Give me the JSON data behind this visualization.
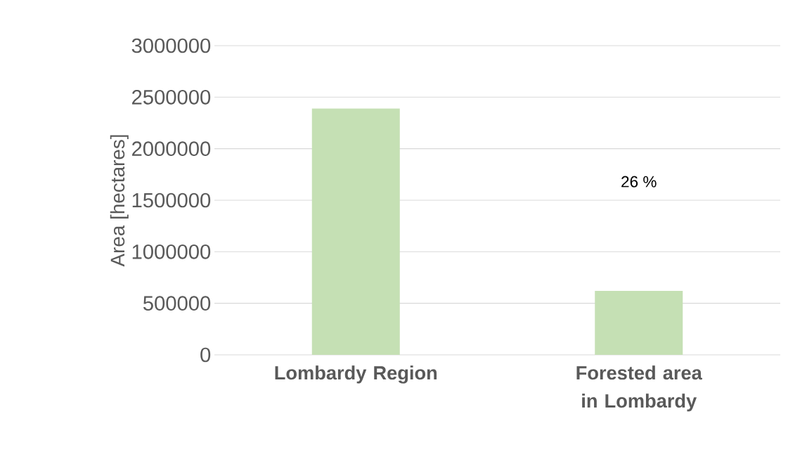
{
  "chart_data": {
    "type": "bar",
    "ylabel": "Area [hectares]",
    "categories": [
      "Lombardy Region",
      "Forested area in Lombardy"
    ],
    "values": [
      2390000,
      620000
    ],
    "color": "#c5e0b4",
    "ylim": [
      0,
      3000000
    ],
    "yticks": [
      0,
      500000,
      1000000,
      1500000,
      2000000,
      2500000,
      3000000
    ],
    "grid": "y",
    "annotations": [
      "26 %"
    ]
  }
}
